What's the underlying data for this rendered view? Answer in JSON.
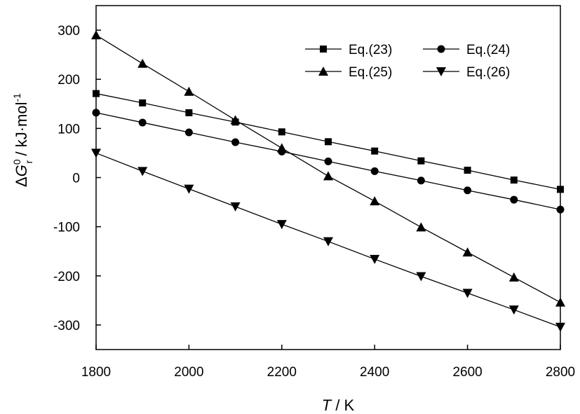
{
  "chart_data": {
    "type": "line",
    "x": [
      1800,
      1900,
      2000,
      2100,
      2200,
      2300,
      2400,
      2500,
      2600,
      2700,
      2800
    ],
    "xlim": [
      1800,
      2800
    ],
    "ylim": [
      -350,
      350
    ],
    "xticks": [
      1800,
      2000,
      2200,
      2400,
      2600,
      2800
    ],
    "yticks": [
      -300,
      -200,
      -100,
      0,
      100,
      200,
      300
    ],
    "xlabel": {
      "italic": "T",
      "rest": " / K"
    },
    "ylabel": {
      "delta": "Δ",
      "G": "G",
      "sup": "0",
      "sub": "r",
      "rest": " / kJ·mol",
      "exp": "-1"
    },
    "grid": false,
    "legend_position": "top-right",
    "series": [
      {
        "name": "Eq.(23)",
        "marker": "square",
        "values": [
          171,
          152,
          132,
          113,
          93,
          73,
          54,
          34,
          15,
          -5,
          -24
        ]
      },
      {
        "name": "Eq.(24)",
        "marker": "circle",
        "values": [
          132,
          112,
          92,
          72,
          53,
          33,
          13,
          -6,
          -26,
          -45,
          -65
        ]
      },
      {
        "name": "Eq.(25)",
        "marker": "triangle-up",
        "values": [
          290,
          232,
          175,
          117,
          60,
          3,
          -48,
          -101,
          -152,
          -203,
          -254
        ]
      },
      {
        "name": "Eq.(26)",
        "marker": "triangle-down",
        "values": [
          50,
          13,
          -23,
          -59,
          -95,
          -130,
          -166,
          -201,
          -235,
          -269,
          -304
        ]
      }
    ]
  }
}
